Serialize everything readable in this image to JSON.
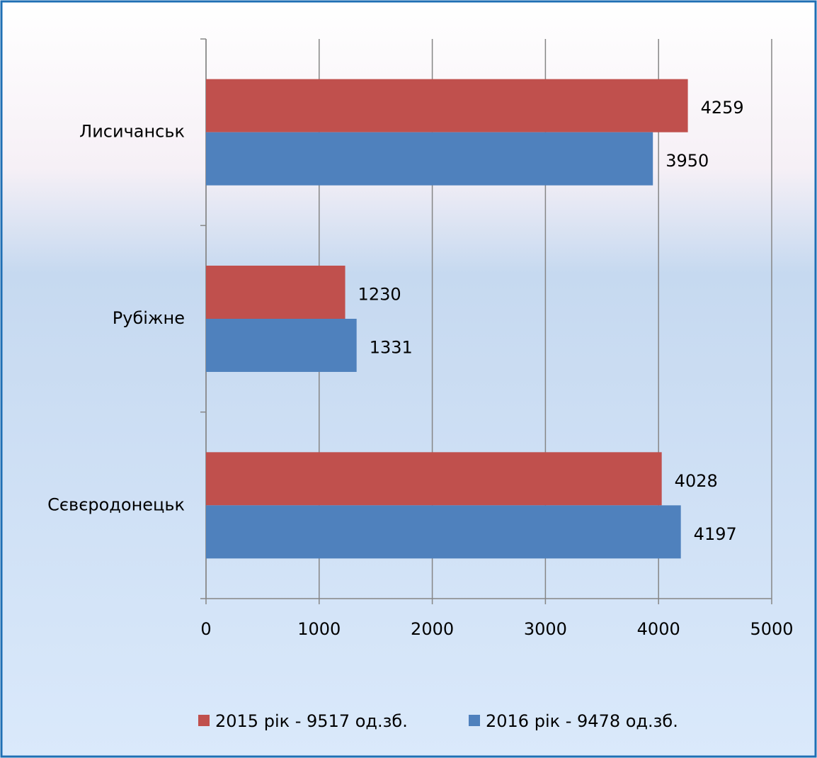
{
  "chart_data": {
    "type": "hbar",
    "categories": [
      "Лисичанськ",
      "Рубіжне",
      "Сєвєродонецьк"
    ],
    "series": [
      {
        "name": "2015 рік - 9517 од.зб.",
        "color": "#c0504d",
        "values": [
          4259,
          1230,
          4028
        ]
      },
      {
        "name": "2016 рік - 9478 од.зб.",
        "color": "#4f81bd",
        "values": [
          3950,
          1331,
          4197
        ]
      }
    ],
    "xlim": [
      0,
      5000
    ],
    "xticks": [
      0,
      1000,
      2000,
      3000,
      4000,
      5000
    ],
    "grid": true,
    "legend": "bottom"
  }
}
